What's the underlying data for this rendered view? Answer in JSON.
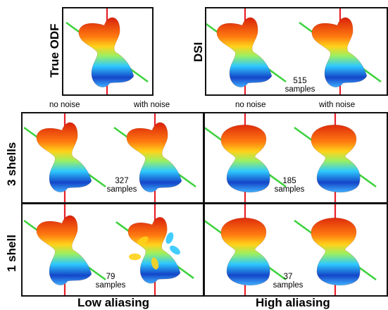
{
  "labels": {
    "true_odf": "True ODF",
    "dsi": "DSI",
    "three_shells": "3 shells",
    "one_shell": "1 shell"
  },
  "captions": {
    "no_noise": "no noise",
    "with_noise": "with noise"
  },
  "samples": {
    "dsi": {
      "count": "515",
      "unit": "samples"
    },
    "shell3_low": {
      "count": "327",
      "unit": "samples"
    },
    "shell3_high": {
      "count": "185",
      "unit": "samples"
    },
    "shell1_low": {
      "count": "79",
      "unit": "samples"
    },
    "shell1_high": {
      "count": "37",
      "unit": "samples"
    }
  },
  "footer": {
    "low_aliasing": "Low aliasing",
    "high_aliasing": "High aliasing"
  },
  "colors": {
    "axis_red": "#e8202a",
    "axis_green": "#3ed23e",
    "glyph_top": "#d81e0a",
    "glyph_mid": "#ffd21a",
    "glyph_cyan": "#2ec8ff",
    "glyph_bottom": "#1446c8"
  }
}
